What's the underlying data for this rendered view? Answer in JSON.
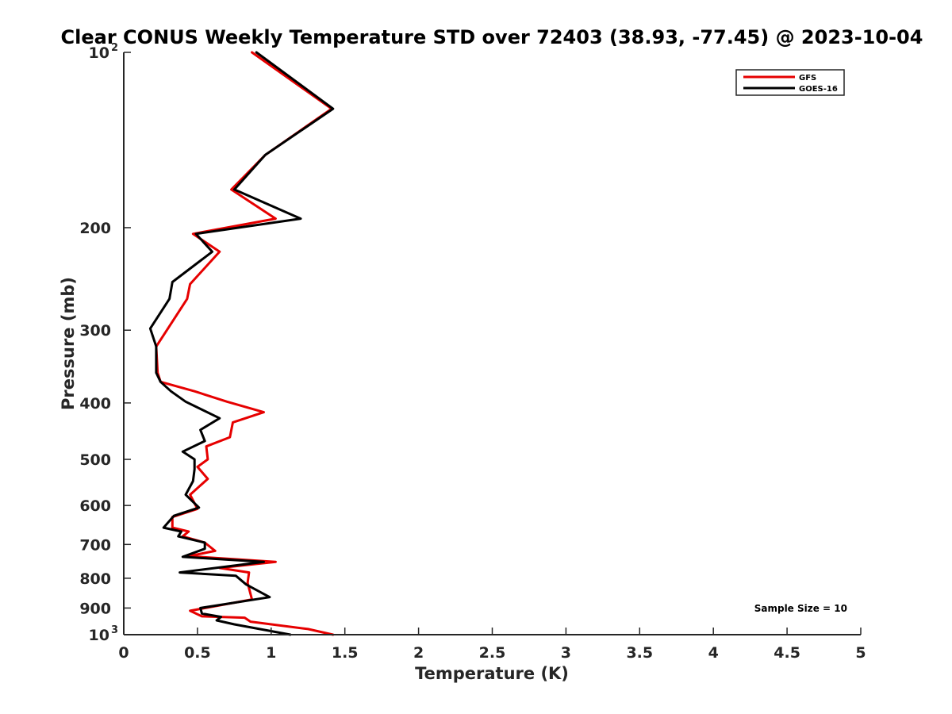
{
  "chart_data": {
    "type": "line",
    "title": "Clear CONUS Weekly Temperature STD over 72403 (38.93, -77.45) @ 2023-10-04",
    "xlabel": "Temperature (K)",
    "ylabel": "Pressure (mb)",
    "xlim": [
      0,
      5
    ],
    "ylim": [
      100,
      1000
    ],
    "y_scale": "log",
    "y_reversed": true,
    "x_ticks": [
      {
        "value": 0,
        "label": "0"
      },
      {
        "value": 0.5,
        "label": "0.5"
      },
      {
        "value": 1,
        "label": "1"
      },
      {
        "value": 1.5,
        "label": "1.5"
      },
      {
        "value": 2,
        "label": "2"
      },
      {
        "value": 2.5,
        "label": "2.5"
      },
      {
        "value": 3,
        "label": "3"
      },
      {
        "value": 3.5,
        "label": "3.5"
      },
      {
        "value": 4,
        "label": "4"
      },
      {
        "value": 4.5,
        "label": "4.5"
      },
      {
        "value": 5,
        "label": "5"
      }
    ],
    "y_ticks": [
      {
        "value": 100,
        "label": "10",
        "sup": "2"
      },
      {
        "value": 200,
        "label": "200",
        "sup": ""
      },
      {
        "value": 300,
        "label": "300",
        "sup": ""
      },
      {
        "value": 400,
        "label": "400",
        "sup": ""
      },
      {
        "value": 500,
        "label": "500",
        "sup": ""
      },
      {
        "value": 600,
        "label": "600",
        "sup": ""
      },
      {
        "value": 700,
        "label": "700",
        "sup": ""
      },
      {
        "value": 800,
        "label": "800",
        "sup": ""
      },
      {
        "value": 900,
        "label": "900",
        "sup": ""
      },
      {
        "value": 1000,
        "label": "10",
        "sup": "3"
      }
    ],
    "grid": false,
    "legend_position": "top-right",
    "annotation": "Sample Size = 10",
    "series": [
      {
        "name": "GFS",
        "color": "#e60000",
        "points": [
          [
            0.87,
            100
          ],
          [
            1.41,
            125
          ],
          [
            0.96,
            150
          ],
          [
            0.73,
            172
          ],
          [
            1.03,
            193
          ],
          [
            0.47,
            205
          ],
          [
            0.65,
            220
          ],
          [
            0.45,
            250
          ],
          [
            0.43,
            265
          ],
          [
            0.3,
            298
          ],
          [
            0.22,
            320
          ],
          [
            0.23,
            355
          ],
          [
            0.25,
            368
          ],
          [
            0.48,
            382
          ],
          [
            0.7,
            398
          ],
          [
            0.95,
            415
          ],
          [
            0.74,
            432
          ],
          [
            0.72,
            458
          ],
          [
            0.56,
            475
          ],
          [
            0.57,
            500
          ],
          [
            0.5,
            515
          ],
          [
            0.57,
            540
          ],
          [
            0.45,
            575
          ],
          [
            0.5,
            608
          ],
          [
            0.33,
            628
          ],
          [
            0.33,
            655
          ],
          [
            0.44,
            665
          ],
          [
            0.4,
            678
          ],
          [
            0.55,
            695
          ],
          [
            0.62,
            718
          ],
          [
            0.44,
            733
          ],
          [
            1.03,
            750
          ],
          [
            0.65,
            768
          ],
          [
            0.85,
            782
          ],
          [
            0.84,
            815
          ],
          [
            0.87,
            870
          ],
          [
            0.45,
            910
          ],
          [
            0.53,
            930
          ],
          [
            0.82,
            935
          ],
          [
            0.86,
            950
          ],
          [
            1.25,
            978
          ],
          [
            1.42,
            1000
          ]
        ]
      },
      {
        "name": "GOES-16",
        "color": "#000000",
        "points": [
          [
            0.9,
            100
          ],
          [
            1.42,
            125
          ],
          [
            0.96,
            150
          ],
          [
            0.75,
            172
          ],
          [
            1.2,
            193
          ],
          [
            0.49,
            205
          ],
          [
            0.6,
            220
          ],
          [
            0.33,
            248
          ],
          [
            0.31,
            265
          ],
          [
            0.18,
            298
          ],
          [
            0.22,
            320
          ],
          [
            0.22,
            355
          ],
          [
            0.25,
            368
          ],
          [
            0.32,
            382
          ],
          [
            0.42,
            398
          ],
          [
            0.65,
            425
          ],
          [
            0.52,
            445
          ],
          [
            0.55,
            465
          ],
          [
            0.4,
            485
          ],
          [
            0.48,
            500
          ],
          [
            0.48,
            520
          ],
          [
            0.47,
            545
          ],
          [
            0.42,
            575
          ],
          [
            0.51,
            605
          ],
          [
            0.34,
            625
          ],
          [
            0.27,
            655
          ],
          [
            0.39,
            665
          ],
          [
            0.37,
            678
          ],
          [
            0.55,
            695
          ],
          [
            0.55,
            712
          ],
          [
            0.4,
            735
          ],
          [
            0.95,
            750
          ],
          [
            0.38,
            782
          ],
          [
            0.76,
            792
          ],
          [
            0.83,
            820
          ],
          [
            0.99,
            862
          ],
          [
            0.52,
            900
          ],
          [
            0.53,
            920
          ],
          [
            0.66,
            932
          ],
          [
            0.63,
            945
          ],
          [
            0.75,
            960
          ],
          [
            1.13,
            1000
          ]
        ]
      }
    ]
  }
}
